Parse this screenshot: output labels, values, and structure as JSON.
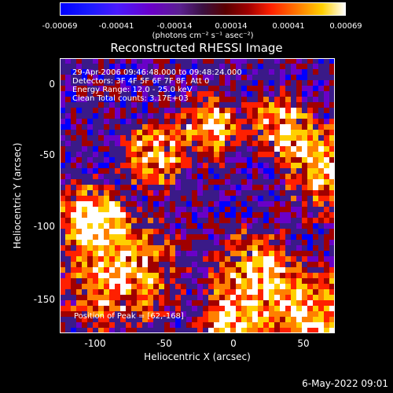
{
  "colorbar": {
    "ticks": [
      "-0.00069",
      "-0.00041",
      "-0.00014",
      "0.00014",
      "0.00041",
      "0.00069"
    ],
    "units": "(photons cm⁻² s⁻¹ asec⁻²)"
  },
  "title": "Reconstructed RHESSI Image",
  "annotations": {
    "line1": "29-Apr-2006 09:46:48.000 to 09:48:24.000",
    "line2": "Detectors: 3F 4F 5F 6F 7F 8F, Att 0",
    "line3": "Energy Range: 12.0 - 25.0 keV",
    "line4": "Clean    Total counts: 3.17E+03",
    "peak": "Position of Peak = [62,-168]"
  },
  "axes": {
    "xlabel": "Heliocentric X (arcsec)",
    "ylabel": "Heliocentric Y (arcsec)",
    "xticks": [
      "-100",
      "-50",
      "0",
      "50"
    ],
    "yticks": [
      "0",
      "-50",
      "-100",
      "-150"
    ]
  },
  "footer": {
    "date": "6-May-2022 09:01"
  },
  "chart_data": {
    "type": "heatmap",
    "title": "Reconstructed RHESSI Image",
    "xlabel": "Heliocentric X (arcsec)",
    "ylabel": "Heliocentric Y (arcsec)",
    "xlim": [
      -125,
      72
    ],
    "ylim": [
      -175,
      15
    ],
    "color_range": [
      -0.00069,
      0.00069
    ],
    "colormap": [
      "#0000ff",
      "#6a00c8",
      "#3a1a88",
      "#a00000",
      "#ff2000",
      "#ff8000",
      "#ffd000",
      "#ffffff"
    ],
    "peak_position": [
      62,
      -168
    ]
  }
}
